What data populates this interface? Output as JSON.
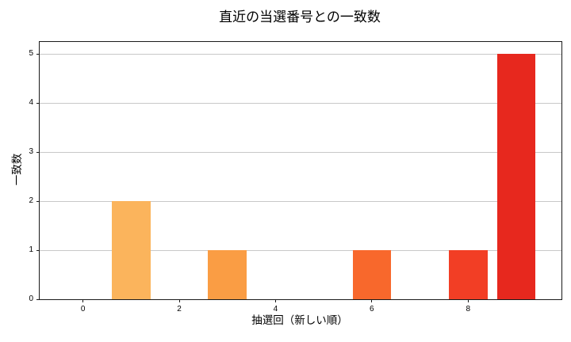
{
  "chart_data": {
    "type": "bar",
    "title": "直近の当選番号との一致数",
    "xlabel": "抽選回（新しい順）",
    "ylabel": "一致数",
    "categories": [
      0,
      1,
      2,
      3,
      4,
      5,
      6,
      7,
      8,
      9
    ],
    "values": [
      0,
      2,
      0,
      1,
      0,
      0,
      1,
      0,
      1,
      5
    ],
    "bars": [
      {
        "x": 1,
        "value": 2,
        "color": "#fbb45c"
      },
      {
        "x": 3,
        "value": 1,
        "color": "#fa9d44"
      },
      {
        "x": 6,
        "value": 1,
        "color": "#f8682c"
      },
      {
        "x": 8,
        "value": 1,
        "color": "#f23e25"
      },
      {
        "x": 9,
        "value": 5,
        "color": "#e7281e"
      }
    ],
    "bar_width": 0.8,
    "x_ticks": [
      0,
      2,
      4,
      6,
      8
    ],
    "y_ticks": [
      0,
      1,
      2,
      3,
      4,
      5
    ],
    "xlim": [
      -0.9,
      9.94
    ],
    "ylim": [
      0,
      5.25
    ],
    "grid": "horizontal-y",
    "legend_position": "none"
  },
  "style": {
    "background": "#ffffff",
    "grid_color": "#c8c8c8",
    "spine_color": "#1a1a1a",
    "text_color": "#000000"
  }
}
